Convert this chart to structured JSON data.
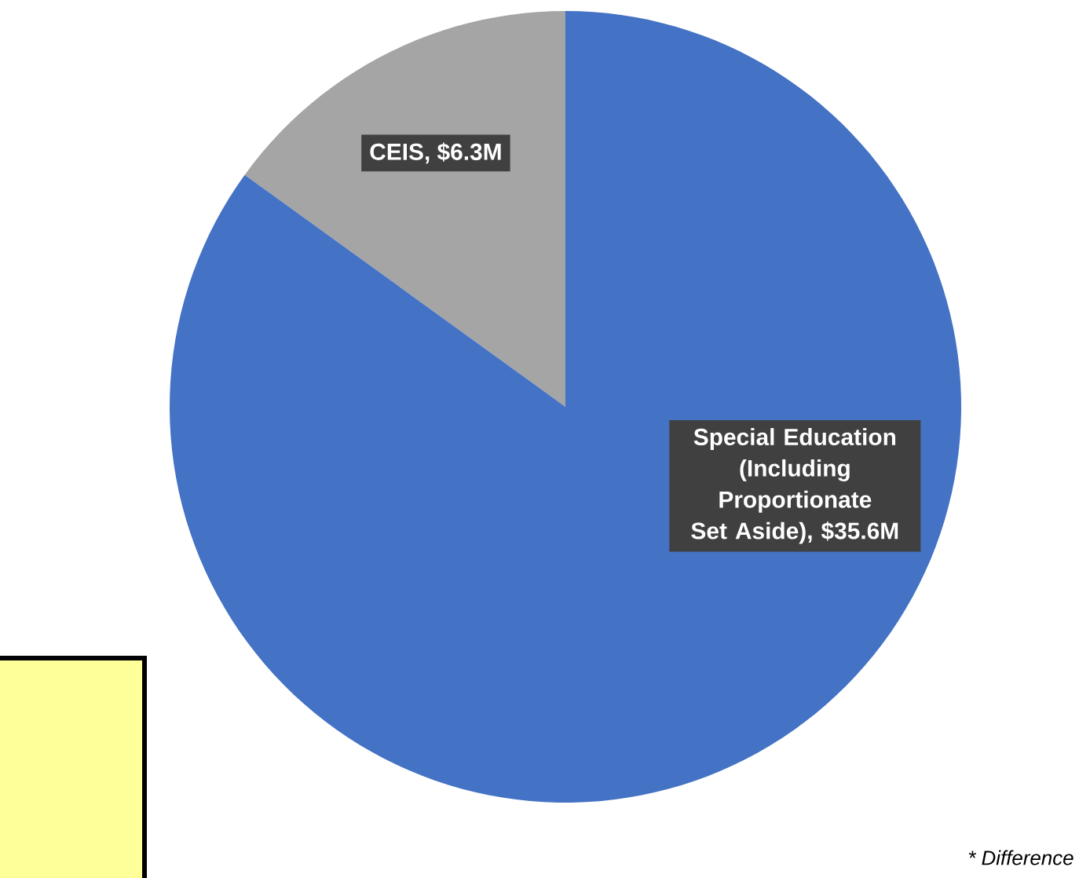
{
  "chart_data": {
    "type": "pie",
    "categories": [
      "CEIS, $6.3M",
      "Special Education (Including Proportionate Set Aside), $35.6M"
    ],
    "values": [
      6.3,
      35.6
    ],
    "colors": [
      "#a5a5a5",
      "#4472c4"
    ],
    "annotations": [
      "* Difference"
    ]
  }
}
